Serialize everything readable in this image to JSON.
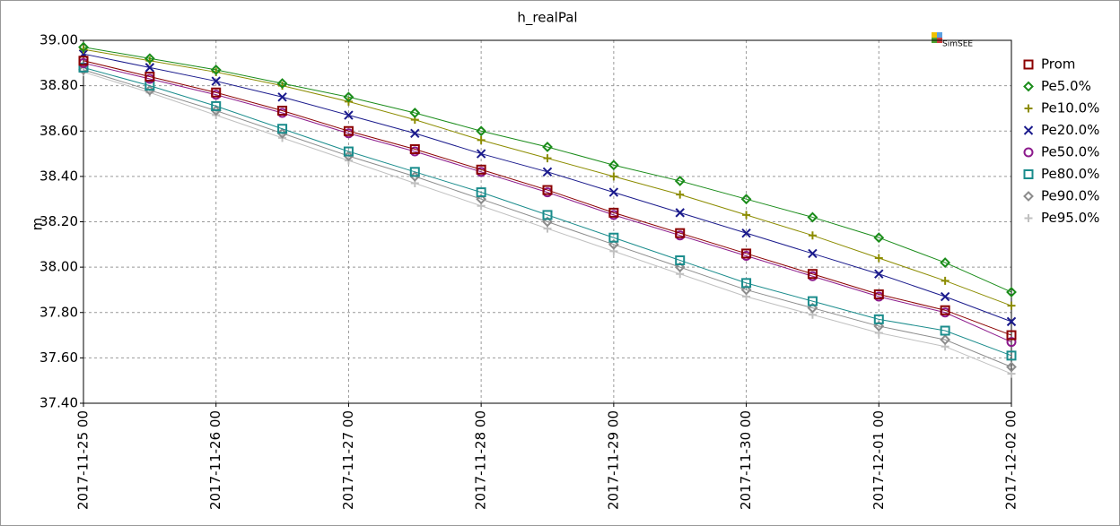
{
  "chart_data": {
    "type": "line",
    "title": "h_realPal",
    "ylabel": "m",
    "watermark": "SimSEE",
    "x": [
      "2017-11-25 00",
      "2017-11-25 12",
      "2017-11-26 00",
      "2017-11-26 12",
      "2017-11-27 00",
      "2017-11-27 12",
      "2017-11-28 00",
      "2017-11-28 12",
      "2017-11-29 00",
      "2017-11-29 12",
      "2017-11-30 00",
      "2017-11-30 12",
      "2017-12-01 00",
      "2017-12-01 12",
      "2017-12-02 00"
    ],
    "ylim": [
      37.4,
      39.0
    ],
    "yticks": [
      {
        "value": 37.4,
        "label": "37.40"
      },
      {
        "value": 37.6,
        "label": "37.60"
      },
      {
        "value": 37.8,
        "label": "37.80"
      },
      {
        "value": 38.0,
        "label": "38.00"
      },
      {
        "value": 38.2,
        "label": "38.20"
      },
      {
        "value": 38.4,
        "label": "38.40"
      },
      {
        "value": 38.6,
        "label": "38.60"
      },
      {
        "value": 38.8,
        "label": "38.80"
      },
      {
        "value": 39.0,
        "label": "39.00"
      }
    ],
    "grid": true,
    "legend": "right",
    "series": [
      {
        "name": "Prom",
        "color": "#8b0000",
        "marker": "square",
        "values": [
          38.91,
          38.84,
          38.77,
          38.69,
          38.6,
          38.52,
          38.43,
          38.34,
          38.24,
          38.15,
          38.06,
          37.97,
          37.88,
          37.81,
          37.7
        ]
      },
      {
        "name": "Pe5.0%",
        "color": "#1a8c1a",
        "marker": "diamond",
        "values": [
          38.97,
          38.92,
          38.87,
          38.81,
          38.75,
          38.68,
          38.6,
          38.53,
          38.45,
          38.38,
          38.3,
          38.22,
          38.13,
          38.02,
          37.89
        ]
      },
      {
        "name": "Pe10.0%",
        "color": "#8c8c00",
        "marker": "plus",
        "values": [
          38.96,
          38.91,
          38.86,
          38.8,
          38.73,
          38.65,
          38.56,
          38.48,
          38.4,
          38.32,
          38.23,
          38.14,
          38.04,
          37.94,
          37.83
        ]
      },
      {
        "name": "Pe20.0%",
        "color": "#1a1a8c",
        "marker": "cross",
        "values": [
          38.94,
          38.88,
          38.82,
          38.75,
          38.67,
          38.59,
          38.5,
          38.42,
          38.33,
          38.24,
          38.15,
          38.06,
          37.97,
          37.87,
          37.76
        ]
      },
      {
        "name": "Pe50.0%",
        "color": "#8c1a8c",
        "marker": "circle",
        "values": [
          38.9,
          38.83,
          38.76,
          38.68,
          38.59,
          38.51,
          38.42,
          38.33,
          38.23,
          38.14,
          38.05,
          37.96,
          37.87,
          37.8,
          37.67
        ]
      },
      {
        "name": "Pe80.0%",
        "color": "#1a8c8c",
        "marker": "square",
        "values": [
          38.88,
          38.8,
          38.71,
          38.61,
          38.51,
          38.42,
          38.33,
          38.23,
          38.13,
          38.03,
          37.93,
          37.85,
          37.77,
          37.72,
          37.61
        ]
      },
      {
        "name": "Pe90.0%",
        "color": "#8c8c8c",
        "marker": "diamond",
        "values": [
          38.87,
          38.78,
          38.69,
          38.59,
          38.49,
          38.4,
          38.3,
          38.2,
          38.1,
          38.0,
          37.9,
          37.82,
          37.74,
          37.68,
          37.56
        ]
      },
      {
        "name": "Pe95.0%",
        "color": "#c0c0c0",
        "marker": "plus",
        "values": [
          38.86,
          38.77,
          38.67,
          38.57,
          38.47,
          38.37,
          38.27,
          38.17,
          38.07,
          37.97,
          37.87,
          37.79,
          37.71,
          37.65,
          37.53
        ]
      }
    ]
  }
}
